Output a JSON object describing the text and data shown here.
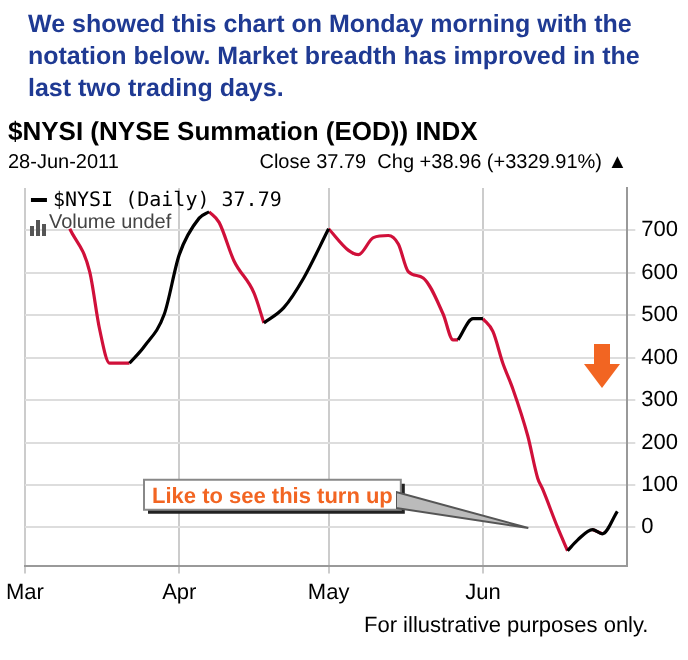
{
  "chart_data": {
    "type": "line",
    "title": "We showed this chart on Monday morning with the notation below.  Market breadth has improved in the last two trading days.",
    "subtitle": "$NYSI (NYSE Summation (EOD)) INDX",
    "x": [
      "2011-03-10",
      "2011-03-14",
      "2011-03-16",
      "2011-03-18",
      "2011-03-22",
      "2011-03-25",
      "2011-03-29",
      "2011-04-01",
      "2011-04-05",
      "2011-04-07",
      "2011-04-09",
      "2011-04-12",
      "2011-04-16",
      "2011-04-18",
      "2011-04-22",
      "2011-04-26",
      "2011-05-01",
      "2011-05-05",
      "2011-05-07",
      "2011-05-10",
      "2011-05-13",
      "2011-05-15",
      "2011-05-17",
      "2011-05-20",
      "2011-05-24",
      "2011-05-26",
      "2011-05-27",
      "2011-05-30",
      "2011-06-01",
      "2011-06-03",
      "2011-06-05",
      "2011-06-07",
      "2011-06-10",
      "2011-06-12",
      "2011-06-13",
      "2011-06-16",
      "2011-06-18",
      "2011-06-20",
      "2011-06-23",
      "2011-06-25",
      "2011-06-28"
    ],
    "series": [
      {
        "name": "$NYSI (Daily) 37.79",
        "color": "#000000",
        "values": [
          null,
          null,
          null,
          null,
          387,
          427,
          503,
          643,
          729,
          744,
          null,
          null,
          null,
          482,
          518,
          588,
          704,
          null,
          null,
          null,
          null,
          null,
          null,
          null,
          null,
          null,
          442,
          492,
          492,
          null,
          null,
          null,
          null,
          null,
          null,
          null,
          -55,
          -30,
          -5,
          -15,
          38
        ]
      },
      {
        "color": "#d0103a",
        "values": [
          704,
          603,
          467,
          387,
          387,
          null,
          null,
          null,
          null,
          744,
          719,
          628,
          553,
          482,
          null,
          null,
          704,
          653,
          643,
          683,
          688,
          668,
          603,
          588,
          503,
          442,
          442,
          null,
          492,
          462,
          387,
          327,
          216,
          116,
          90,
          0,
          -55,
          null,
          -5,
          -15,
          null
        ]
      }
    ],
    "xlim": [
      "2011-03-01",
      "2011-06-30"
    ],
    "xticks": [
      {
        "value": "2011-03-01",
        "label": "Mar"
      },
      {
        "value": "2011-04-01",
        "label": "Apr"
      },
      {
        "value": "2011-05-01",
        "label": "May"
      },
      {
        "value": "2011-06-01",
        "label": "Jun"
      }
    ],
    "ylim": [
      -90,
      800
    ],
    "yticks": [
      0,
      100,
      200,
      300,
      400,
      500,
      600,
      700
    ],
    "grid": true,
    "legend": "top left",
    "marker": "none",
    "line_style": "solid",
    "annotations": [
      "28-Jun-2011",
      "Close 37.79  Chg +38.96 (+3329.91%) ▲",
      "Volume undef",
      "Like to see this turn up",
      "For illustrative purposes only."
    ]
  }
}
